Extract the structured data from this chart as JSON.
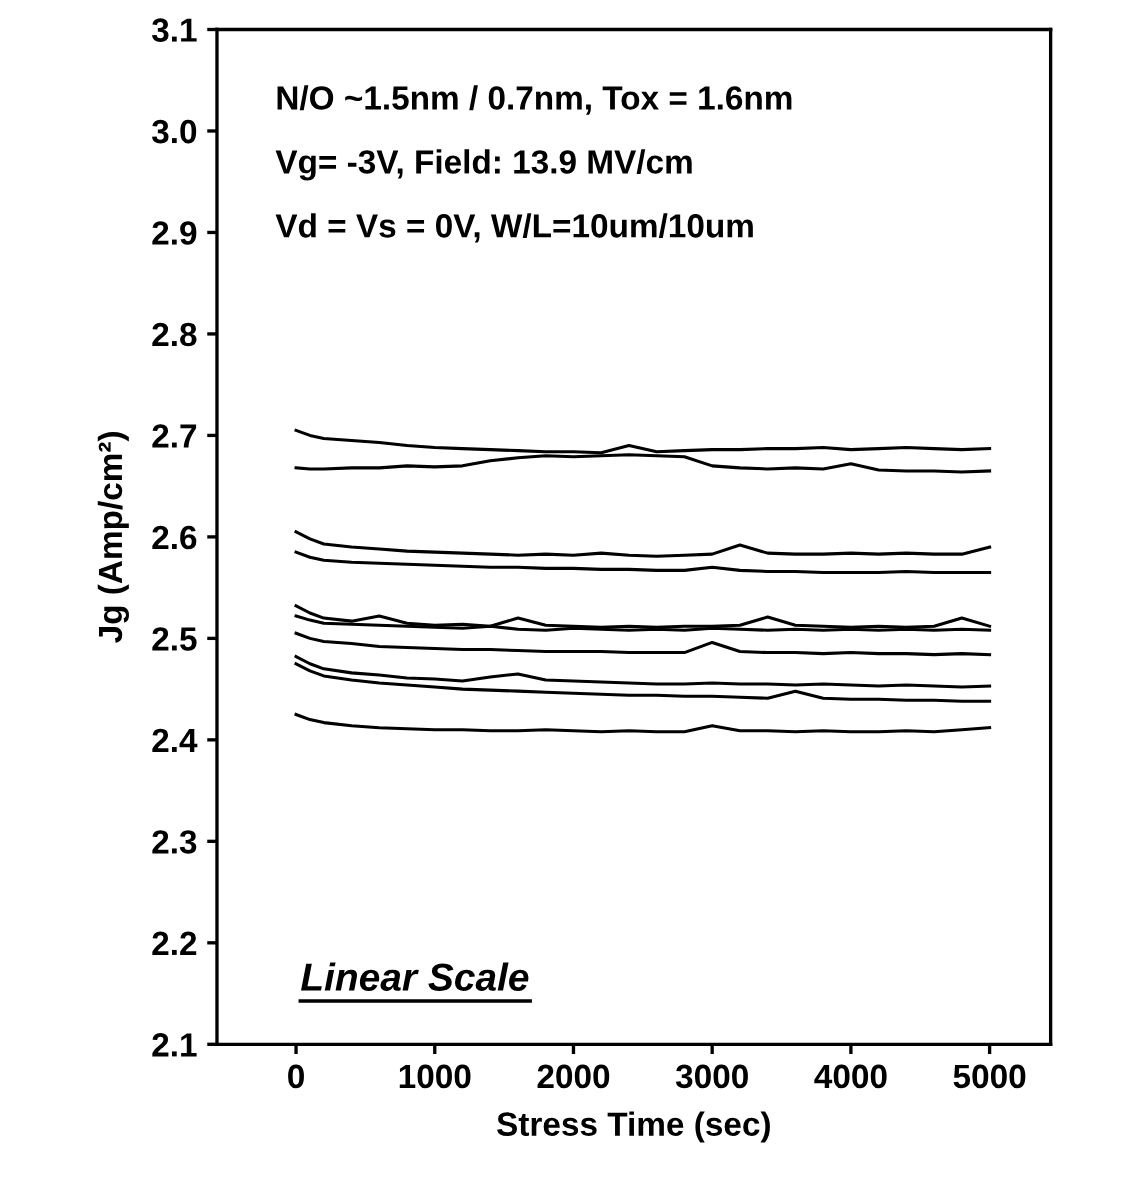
{
  "chart_data": {
    "type": "line",
    "xlabel": "Stress Time (sec)",
    "ylabel": "Jg (Amp/cm²)",
    "x": [
      0,
      100,
      200,
      400,
      600,
      800,
      1000,
      1200,
      1400,
      1600,
      1800,
      2000,
      2200,
      2400,
      2600,
      2800,
      3000,
      3200,
      3400,
      3600,
      3800,
      4000,
      4200,
      4400,
      4600,
      4800,
      5000
    ],
    "series": [
      {
        "color": "#000000",
        "values": [
          2.705,
          2.7,
          2.697,
          2.695,
          2.693,
          2.69,
          2.688,
          2.687,
          2.686,
          2.685,
          2.684,
          2.684,
          2.683,
          2.69,
          2.684,
          2.685,
          2.686,
          2.686,
          2.687,
          2.687,
          2.688,
          2.686,
          2.687,
          2.688,
          2.687,
          2.686,
          2.687
        ]
      },
      {
        "color": "#000000",
        "values": [
          2.668,
          2.667,
          2.667,
          2.668,
          2.668,
          2.67,
          2.669,
          2.67,
          2.675,
          2.678,
          2.68,
          2.679,
          2.68,
          2.681,
          2.68,
          2.679,
          2.67,
          2.668,
          2.667,
          2.668,
          2.667,
          2.672,
          2.666,
          2.665,
          2.665,
          2.664,
          2.665
        ]
      },
      {
        "color": "#000000",
        "values": [
          2.605,
          2.598,
          2.593,
          2.59,
          2.588,
          2.586,
          2.585,
          2.584,
          2.583,
          2.582,
          2.583,
          2.582,
          2.584,
          2.582,
          2.581,
          2.582,
          2.583,
          2.592,
          2.584,
          2.583,
          2.583,
          2.584,
          2.583,
          2.584,
          2.583,
          2.583,
          2.59
        ]
      },
      {
        "color": "#000000",
        "values": [
          2.585,
          2.58,
          2.577,
          2.575,
          2.574,
          2.573,
          2.572,
          2.571,
          2.57,
          2.57,
          2.569,
          2.569,
          2.568,
          2.568,
          2.567,
          2.567,
          2.57,
          2.567,
          2.566,
          2.566,
          2.565,
          2.565,
          2.565,
          2.566,
          2.565,
          2.565,
          2.565
        ]
      },
      {
        "color": "#000000",
        "values": [
          2.532,
          2.525,
          2.52,
          2.517,
          2.522,
          2.515,
          2.513,
          2.514,
          2.512,
          2.52,
          2.513,
          2.512,
          2.511,
          2.512,
          2.511,
          2.512,
          2.512,
          2.513,
          2.521,
          2.513,
          2.512,
          2.511,
          2.512,
          2.511,
          2.512,
          2.52,
          2.512
        ]
      },
      {
        "color": "#000000",
        "values": [
          2.522,
          2.518,
          2.515,
          2.514,
          2.513,
          2.512,
          2.511,
          2.51,
          2.512,
          2.509,
          2.508,
          2.51,
          2.509,
          2.508,
          2.509,
          2.508,
          2.51,
          2.509,
          2.508,
          2.509,
          2.508,
          2.509,
          2.508,
          2.509,
          2.508,
          2.509,
          2.508
        ]
      },
      {
        "color": "#000000",
        "values": [
          2.505,
          2.5,
          2.497,
          2.495,
          2.492,
          2.491,
          2.49,
          2.489,
          2.489,
          2.488,
          2.487,
          2.487,
          2.487,
          2.486,
          2.486,
          2.486,
          2.496,
          2.487,
          2.486,
          2.486,
          2.485,
          2.486,
          2.485,
          2.485,
          2.484,
          2.485,
          2.484
        ]
      },
      {
        "color": "#000000",
        "values": [
          2.482,
          2.475,
          2.47,
          2.466,
          2.464,
          2.461,
          2.46,
          2.458,
          2.462,
          2.465,
          2.459,
          2.458,
          2.457,
          2.456,
          2.455,
          2.455,
          2.456,
          2.455,
          2.455,
          2.454,
          2.455,
          2.454,
          2.453,
          2.454,
          2.453,
          2.452,
          2.453
        ]
      },
      {
        "color": "#000000",
        "values": [
          2.475,
          2.468,
          2.463,
          2.459,
          2.456,
          2.454,
          2.452,
          2.45,
          2.449,
          2.448,
          2.447,
          2.446,
          2.445,
          2.444,
          2.444,
          2.443,
          2.443,
          2.442,
          2.441,
          2.448,
          2.441,
          2.44,
          2.44,
          2.439,
          2.439,
          2.438,
          2.438
        ]
      },
      {
        "color": "#000000",
        "values": [
          2.425,
          2.42,
          2.417,
          2.414,
          2.412,
          2.411,
          2.41,
          2.41,
          2.409,
          2.409,
          2.41,
          2.409,
          2.408,
          2.409,
          2.408,
          2.408,
          2.414,
          2.409,
          2.409,
          2.408,
          2.409,
          2.408,
          2.408,
          2.409,
          2.408,
          2.41,
          2.412
        ]
      }
    ],
    "xlim": [
      -570,
      5440
    ],
    "ylim": [
      2.1,
      3.1
    ],
    "xticks": [
      0,
      1000,
      2000,
      3000,
      4000,
      5000
    ],
    "yticks": [
      {
        "value": 2.1,
        "label": "2.1"
      },
      {
        "value": 2.2,
        "label": "2.2"
      },
      {
        "value": 2.3,
        "label": "2.3"
      },
      {
        "value": 2.4,
        "label": "2.4"
      },
      {
        "value": 2.5,
        "label": "2.5"
      },
      {
        "value": 2.6,
        "label": "2.6"
      },
      {
        "value": 2.7,
        "label": "2.7"
      },
      {
        "value": 2.8,
        "label": "2.8"
      },
      {
        "value": 2.9,
        "label": "2.9"
      },
      {
        "value": 3.0,
        "label": "3.0"
      },
      {
        "value": 3.1,
        "label": "3.1"
      }
    ],
    "grid": false,
    "legend": false,
    "marker": "none",
    "line_style": "solid",
    "annotations": [
      "N/O ~1.5nm / 0.7nm, Tox = 1.6nm",
      "Vg= -3V, Field: 13.9 MV/cm",
      "Vd = Vs = 0V, W/L=10um/10um",
      "Linear Scale"
    ]
  }
}
